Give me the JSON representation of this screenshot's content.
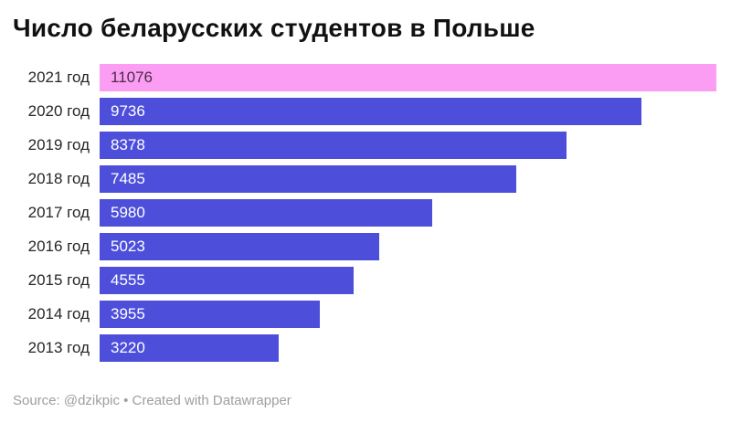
{
  "title": "Число беларусских студентов в Польше",
  "footer": {
    "text": "Source: @dzikpic • Created with Datawrapper"
  },
  "colors": {
    "title": "#111111",
    "label": "#262626",
    "bar_default": "#4d4fdb",
    "bar_highlight": "#fb9df3",
    "value_on_default": "#ffffff",
    "value_on_highlight": "#4b2d48",
    "footer": "#9e9e9e"
  },
  "chart_data": {
    "type": "bar",
    "orientation": "horizontal",
    "title": "Число беларусских студентов в Польше",
    "categories": [
      "2021 год",
      "2020 год",
      "2019 год",
      "2018 год",
      "2017 год",
      "2016 год",
      "2015 год",
      "2014 год",
      "2013 год"
    ],
    "values": [
      11076,
      9736,
      8378,
      7485,
      5980,
      5023,
      4555,
      3955,
      3220
    ],
    "xlim": [
      0,
      11076
    ],
    "highlight_index": 0,
    "value_labels_inside": true,
    "grid": false,
    "legend": false,
    "source": "@dzikpic",
    "tool": "Datawrapper"
  }
}
